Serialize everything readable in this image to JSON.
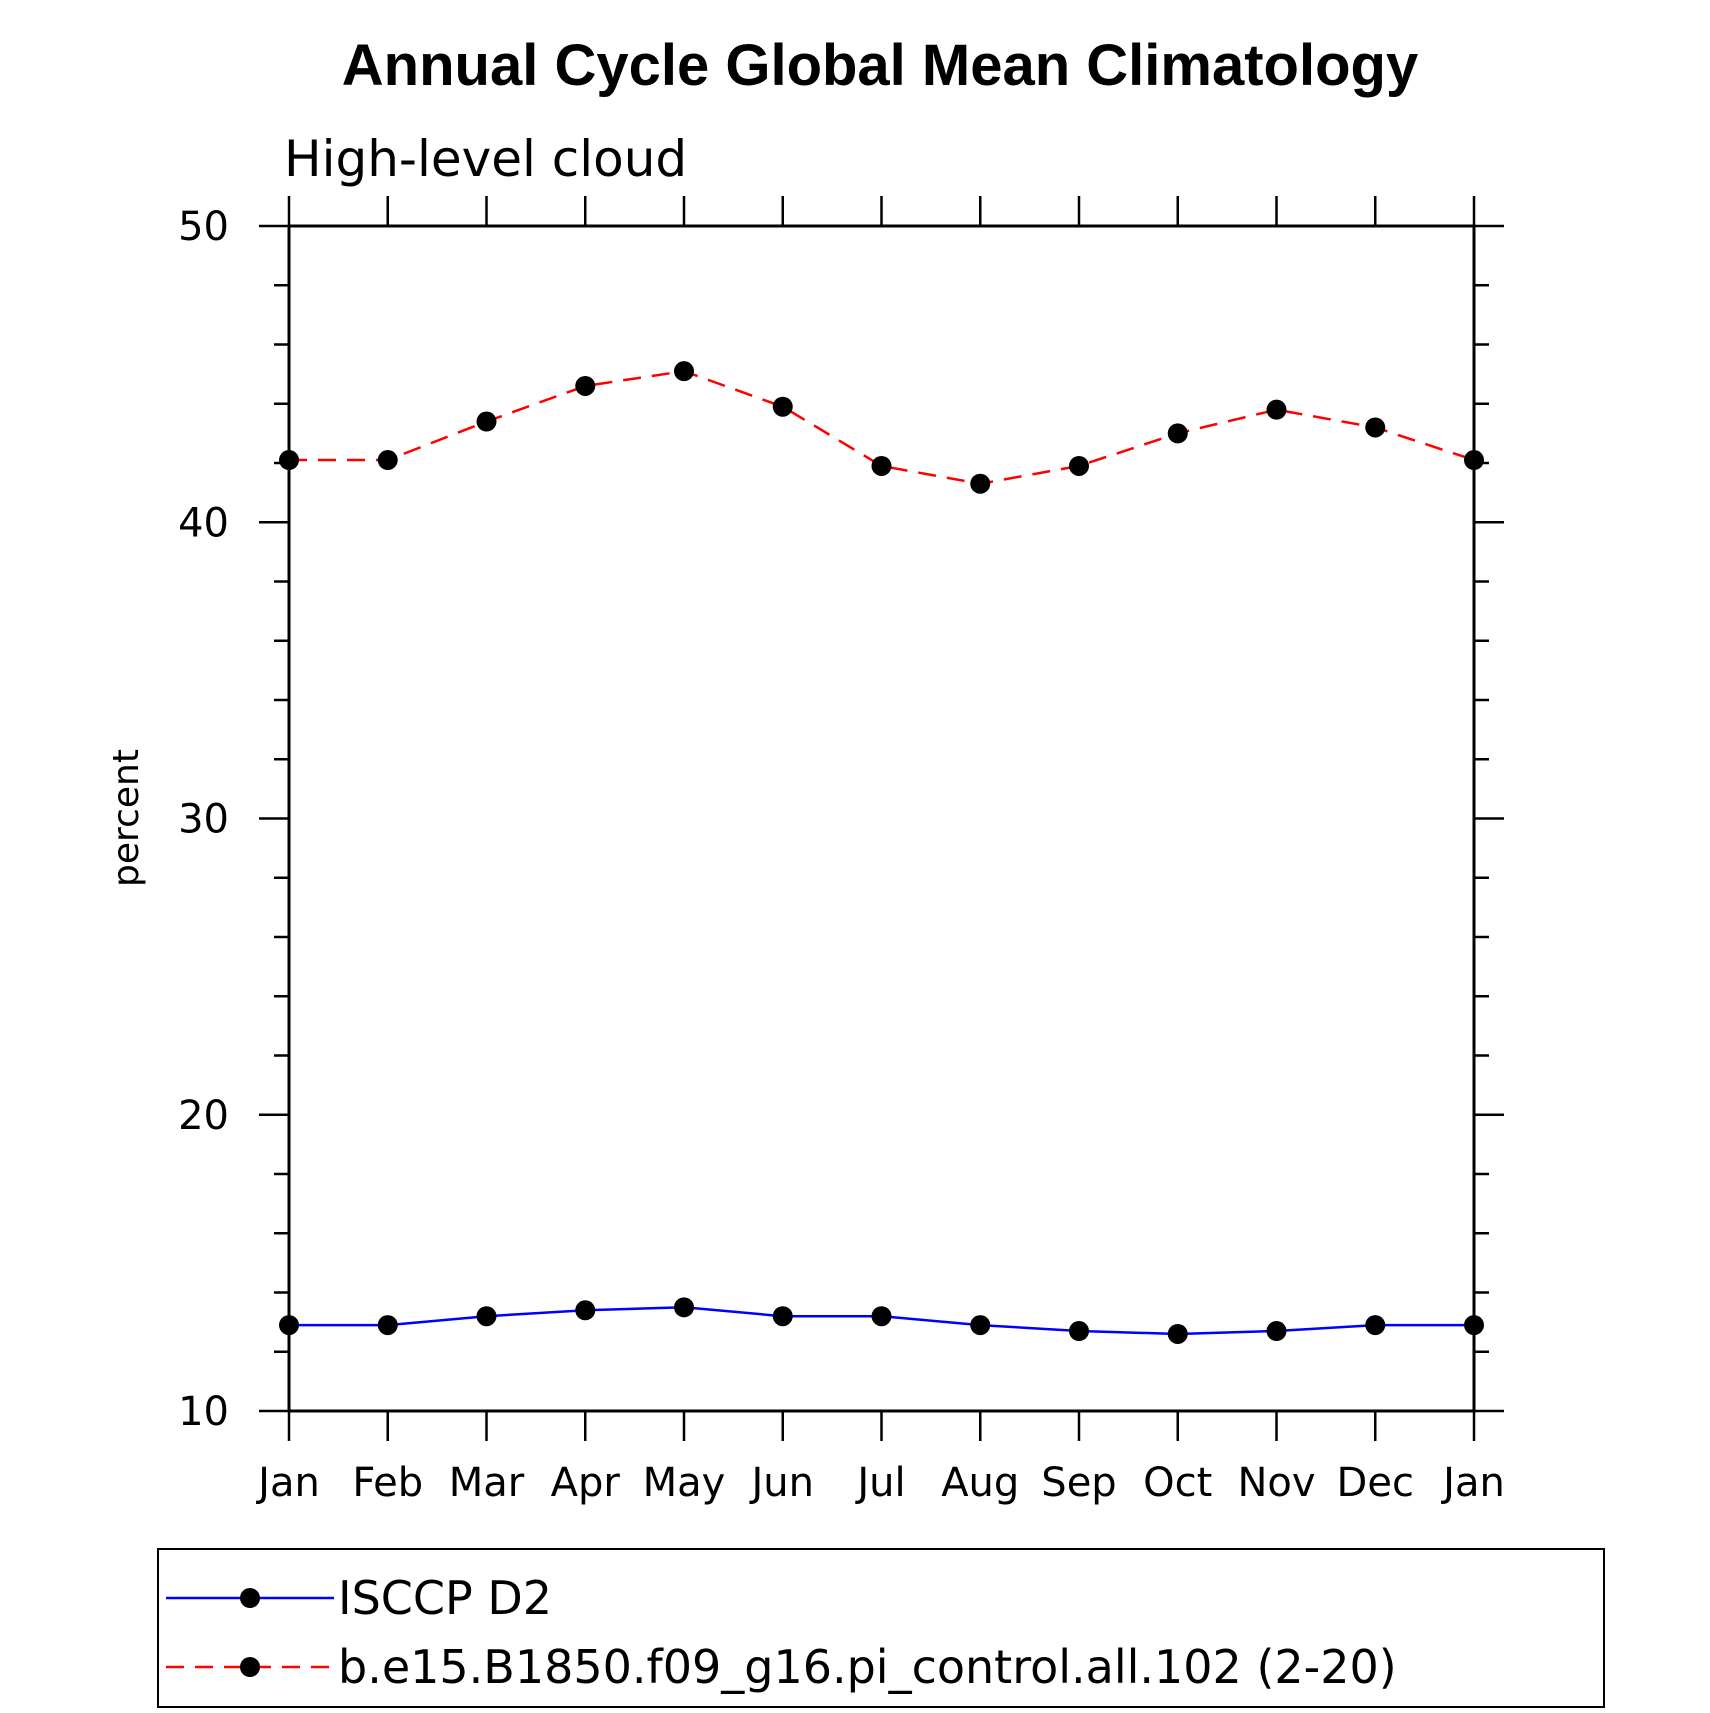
{
  "chart_data": {
    "type": "line",
    "title": "Annual Cycle Global Mean Climatology",
    "subtitle": "High-level cloud",
    "ylabel": "percent",
    "xlabel": "",
    "categories": [
      "Jan",
      "Feb",
      "Mar",
      "Apr",
      "May",
      "Jun",
      "Jul",
      "Aug",
      "Sep",
      "Oct",
      "Nov",
      "Dec",
      "Jan"
    ],
    "ylim": [
      10,
      50
    ],
    "yticks": [
      "10",
      "20",
      "30",
      "40",
      "50"
    ],
    "grid": false,
    "legend_position": "bottom",
    "series": [
      {
        "name": "ISCCP D2",
        "color": "#0000ff",
        "line_style": "solid",
        "marker": "filled-circle",
        "values": [
          12.9,
          12.9,
          13.2,
          13.4,
          13.5,
          13.2,
          13.2,
          12.9,
          12.7,
          12.6,
          12.7,
          12.9,
          12.9
        ]
      },
      {
        "name": "b.e15.B1850.f09_g16.pi_control.all.102 (2-20)",
        "color": "#ff0000",
        "line_style": "dashed",
        "marker": "filled-circle",
        "values": [
          42.1,
          42.1,
          43.4,
          44.6,
          45.1,
          43.9,
          41.9,
          41.3,
          41.9,
          43.0,
          43.8,
          43.2,
          42.1
        ]
      }
    ]
  }
}
